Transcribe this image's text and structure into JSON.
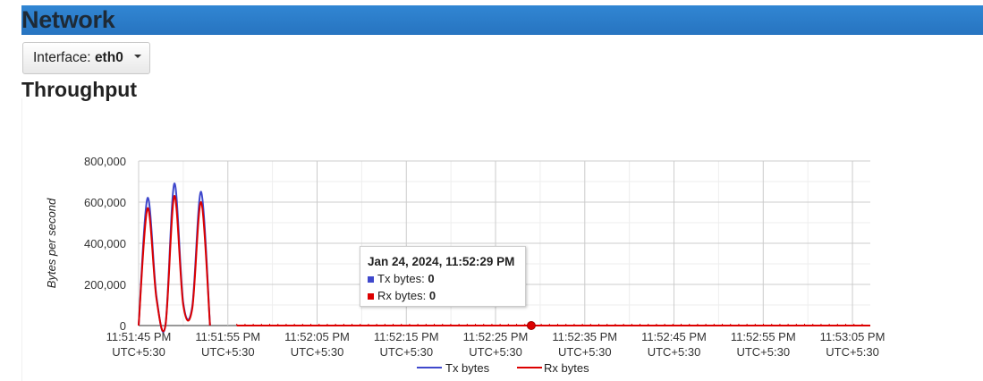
{
  "header": {
    "title": "Network",
    "color": "#2b7bc6"
  },
  "interface_selector": {
    "label": "Interface:",
    "value": "eth0",
    "icon": "caret-down-icon"
  },
  "section": {
    "title": "Throughput"
  },
  "tooltip": {
    "title": "Jan 24, 2024, 11:52:29 PM",
    "rows": [
      {
        "label": "Tx bytes:",
        "value": "0",
        "color": "#3f48cc"
      },
      {
        "label": "Rx bytes:",
        "value": "0",
        "color": "#dc0000"
      }
    ]
  },
  "chart_data": {
    "type": "line",
    "title": "",
    "xlabel": "",
    "ylabel": "Bytes per second",
    "ylim": [
      0,
      800000
    ],
    "xlim": [
      "11:51:45 PM",
      "11:53:07 PM"
    ],
    "y_ticks": [
      "0",
      "200,000",
      "400,000",
      "600,000",
      "800,000"
    ],
    "y_tick_values": [
      0,
      200000,
      400000,
      600000,
      800000
    ],
    "x_ticks": [
      [
        "11:51:45 PM",
        "UTC+5:30"
      ],
      [
        "11:51:55 PM",
        "UTC+5:30"
      ],
      [
        "11:52:05 PM",
        "UTC+5:30"
      ],
      [
        "11:52:15 PM",
        "UTC+5:30"
      ],
      [
        "11:52:25 PM",
        "UTC+5:30"
      ],
      [
        "11:52:35 PM",
        "UTC+5:30"
      ],
      [
        "11:52:45 PM",
        "UTC+5:30"
      ],
      [
        "11:52:55 PM",
        "UTC+5:30"
      ],
      [
        "11:53:05 PM",
        "UTC+5:30"
      ]
    ],
    "grid": true,
    "legend_position": "bottom",
    "highlight_point": {
      "time": "11:52:29 PM",
      "value": 0
    },
    "series": [
      {
        "name": "Tx bytes",
        "color": "#3f48cc",
        "points": [
          [
            "11:51:45 PM",
            0
          ],
          [
            "11:51:46 PM",
            620000
          ],
          [
            "11:51:47 PM",
            140000
          ],
          [
            "11:51:48 PM",
            0
          ],
          [
            "11:51:49 PM",
            690000
          ],
          [
            "11:51:50 PM",
            110000
          ],
          [
            "11:51:51 PM",
            90000
          ],
          [
            "11:51:52 PM",
            650000
          ],
          [
            "11:51:53 PM",
            0
          ]
        ]
      },
      {
        "name": "Rx bytes",
        "color": "#dc0000",
        "points": [
          [
            "11:51:45 PM",
            0
          ],
          [
            "11:51:46 PM",
            570000
          ],
          [
            "11:51:47 PM",
            130000
          ],
          [
            "11:51:48 PM",
            0
          ],
          [
            "11:51:49 PM",
            630000
          ],
          [
            "11:51:50 PM",
            100000
          ],
          [
            "11:51:51 PM",
            80000
          ],
          [
            "11:51:52 PM",
            600000
          ],
          [
            "11:51:53 PM",
            0
          ],
          [
            "11:51:56 PM",
            0
          ],
          [
            "11:52:29 PM",
            0
          ],
          [
            "11:53:07 PM",
            0
          ]
        ]
      }
    ]
  }
}
